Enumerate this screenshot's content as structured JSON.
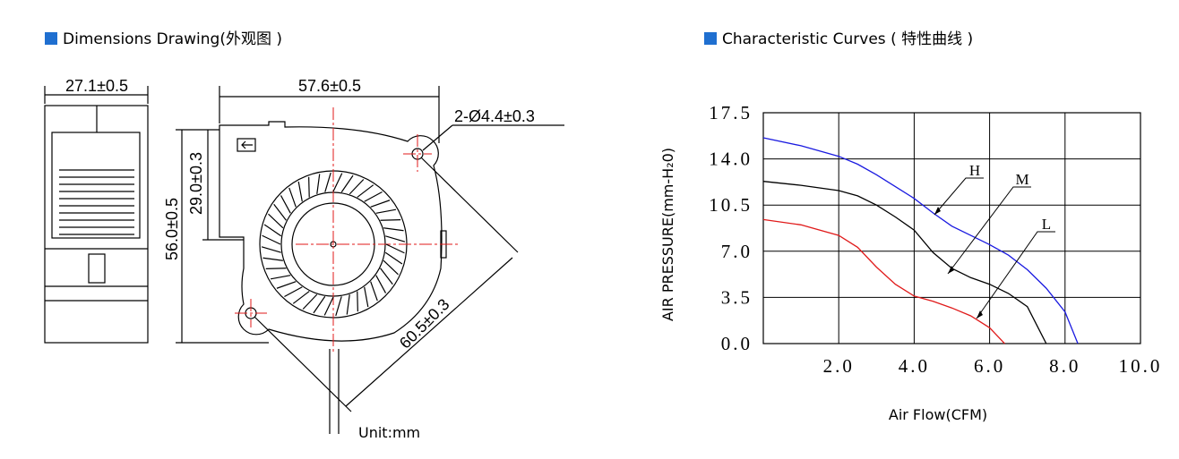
{
  "drawing": {
    "title": "Dimensions Drawing(外观图 )",
    "dimensions": [
      "27.1±0.5",
      "57.6±0.5",
      "2-Ø4.4±0.3",
      "29.0±0.3",
      "56.0±0.5",
      "60.5±0.3"
    ],
    "unit": "Unit:mm"
  },
  "chart_data": {
    "type": "line",
    "title": "Characteristic Curves ( 特性曲线 )",
    "x_label": "Air Flow(CFM)",
    "y_label": "AIR PRESSURE(mm-H₂0)",
    "xlim": [
      0,
      10
    ],
    "ylim": [
      0,
      17.5
    ],
    "xticks": [
      {
        "value": 2,
        "label": "2.0"
      },
      {
        "value": 4,
        "label": "4.0"
      },
      {
        "value": 6,
        "label": "6.0"
      },
      {
        "value": 8,
        "label": "8.0"
      },
      {
        "value": 10,
        "label": "10.0"
      }
    ],
    "yticks": [
      {
        "value": 0,
        "label": "0.0"
      },
      {
        "value": 3.5,
        "label": "3.5"
      },
      {
        "value": 7,
        "label": "7.0"
      },
      {
        "value": 10.5,
        "label": "10.5"
      },
      {
        "value": 14,
        "label": "14.0"
      },
      {
        "value": 17.5,
        "label": "17.5"
      }
    ],
    "grid": true,
    "series": [
      {
        "name": "H",
        "color": "#1a1ae0",
        "x": [
          0,
          1,
          2,
          2.5,
          3,
          3.5,
          4,
          4.5,
          5,
          5.5,
          6,
          6.5,
          7,
          7.5,
          8,
          8.34
        ],
        "values": [
          15.6,
          15.0,
          14.2,
          13.6,
          12.8,
          11.9,
          11.0,
          9.9,
          8.9,
          8.2,
          7.5,
          6.7,
          5.6,
          4.2,
          2.4,
          0
        ]
      },
      {
        "name": "M",
        "color": "#000000",
        "x": [
          0,
          1,
          2,
          2.5,
          3,
          3.5,
          4,
          4.5,
          5,
          5.5,
          6,
          6.5,
          7,
          7.5
        ],
        "values": [
          12.3,
          12.0,
          11.6,
          11.2,
          10.5,
          9.6,
          8.6,
          6.9,
          5.7,
          5.0,
          4.5,
          3.8,
          2.8,
          0
        ]
      },
      {
        "name": "L",
        "color": "#e01a1a",
        "x": [
          0,
          1,
          2,
          2.5,
          3,
          3.5,
          4,
          4.5,
          5,
          5.5,
          6,
          6.4
        ],
        "values": [
          9.4,
          9.0,
          8.2,
          7.3,
          5.8,
          4.5,
          3.6,
          3.2,
          2.7,
          2.1,
          1.2,
          0
        ]
      }
    ]
  }
}
